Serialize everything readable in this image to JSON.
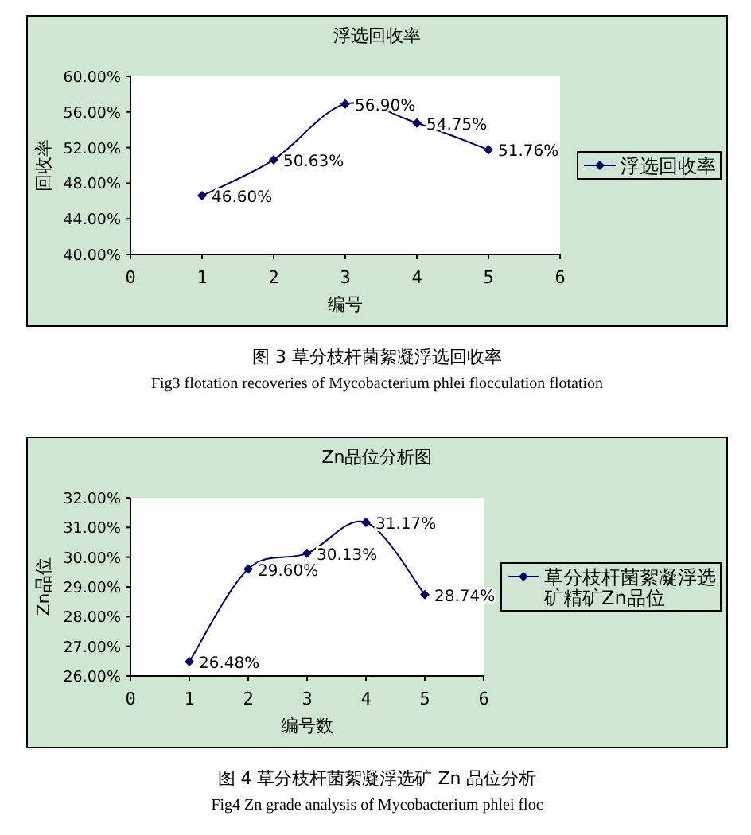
{
  "chart_data": [
    {
      "type": "line",
      "title": "浮选回收率",
      "xlabel": "编号",
      "ylabel": "回收率",
      "x": [
        1,
        2,
        3,
        4,
        5
      ],
      "xlim": [
        0,
        6
      ],
      "xticks": [
        0,
        1,
        2,
        3,
        4,
        5,
        6
      ],
      "ylim": [
        40,
        60
      ],
      "yticks": [
        {
          "value": 40,
          "label": "40.00%"
        },
        {
          "value": 44,
          "label": "44.00%"
        },
        {
          "value": 48,
          "label": "48.00%"
        },
        {
          "value": 52,
          "label": "52.00%"
        },
        {
          "value": 56,
          "label": "56.00%"
        },
        {
          "value": 60,
          "label": "60.00%"
        }
      ],
      "legend": "right",
      "marker": "diamond",
      "series": [
        {
          "name": "浮选回收率",
          "color": "#000066",
          "values": [
            46.6,
            50.63,
            56.9,
            54.75,
            51.76
          ],
          "value_labels": [
            "46.60%",
            "50.63%",
            "56.90%",
            "54.75%",
            "51.76%"
          ]
        }
      ],
      "annotations": [
        "图 3 草分枝杆菌絮凝浮选回收率",
        "Fig3 flotation recoveries of Mycobacterium phlei flocculation flotation"
      ]
    },
    {
      "type": "line",
      "title": "Zn品位分析图",
      "xlabel": "编号数",
      "ylabel": "Zn品位",
      "x": [
        1,
        2,
        3,
        4,
        5
      ],
      "xlim": [
        0,
        6
      ],
      "xticks": [
        0,
        1,
        2,
        3,
        4,
        5,
        6
      ],
      "ylim": [
        26,
        32
      ],
      "yticks": [
        {
          "value": 26,
          "label": "26.00%"
        },
        {
          "value": 27,
          "label": "27.00%"
        },
        {
          "value": 28,
          "label": "28.00%"
        },
        {
          "value": 29,
          "label": "29.00%"
        },
        {
          "value": 30,
          "label": "30.00%"
        },
        {
          "value": 31,
          "label": "31.00%"
        },
        {
          "value": 32,
          "label": "32.00%"
        }
      ],
      "legend": "right",
      "marker": "diamond",
      "series": [
        {
          "name": "草分枝杆菌絮凝浮选矿精矿Zn品位",
          "color": "#000066",
          "values": [
            26.48,
            29.6,
            30.13,
            31.17,
            28.74
          ],
          "value_labels": [
            "26.48%",
            "29.60%",
            "30.13%",
            "31.17%",
            "28.74%"
          ]
        }
      ],
      "annotations": [
        "图 4 草分枝杆菌絮凝浮选矿 Zn 品位分析",
        "Fig4 Zn grade analysis of Mycobacterium phlei floc"
      ]
    }
  ]
}
